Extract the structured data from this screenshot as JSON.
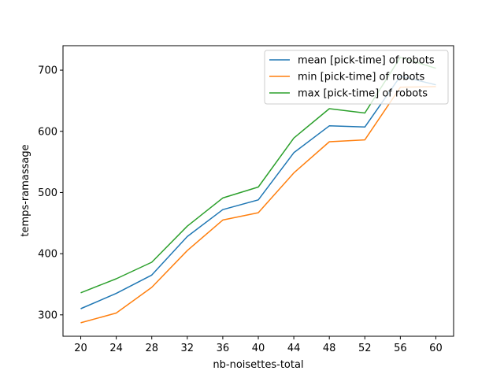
{
  "chart_data": {
    "type": "line",
    "title": "",
    "xlabel": "nb-noisettes-total",
    "ylabel": "temps-ramassage",
    "x": [
      20,
      24,
      28,
      32,
      36,
      40,
      44,
      48,
      52,
      56,
      60
    ],
    "xlim": [
      18,
      62
    ],
    "ylim": [
      265,
      740
    ],
    "xticks": [
      20,
      24,
      28,
      32,
      36,
      40,
      44,
      48,
      52,
      56,
      60
    ],
    "yticks": [
      300,
      400,
      500,
      600,
      700
    ],
    "grid": false,
    "legend_position": "top-right",
    "series": [
      {
        "name": "mean [pick-time] of robots",
        "color": "#1f77b4",
        "values": [
          310,
          335,
          365,
          428,
          472,
          488,
          565,
          609,
          607,
          690,
          676
        ]
      },
      {
        "name": "min [pick-time] of robots",
        "color": "#ff7f0e",
        "values": [
          287,
          303,
          345,
          405,
          455,
          467,
          532,
          583,
          586,
          672,
          673
        ]
      },
      {
        "name": "max [pick-time] of robots",
        "color": "#2ca02c",
        "values": [
          336,
          359,
          386,
          445,
          491,
          509,
          589,
          637,
          630,
          721,
          703
        ]
      }
    ]
  }
}
